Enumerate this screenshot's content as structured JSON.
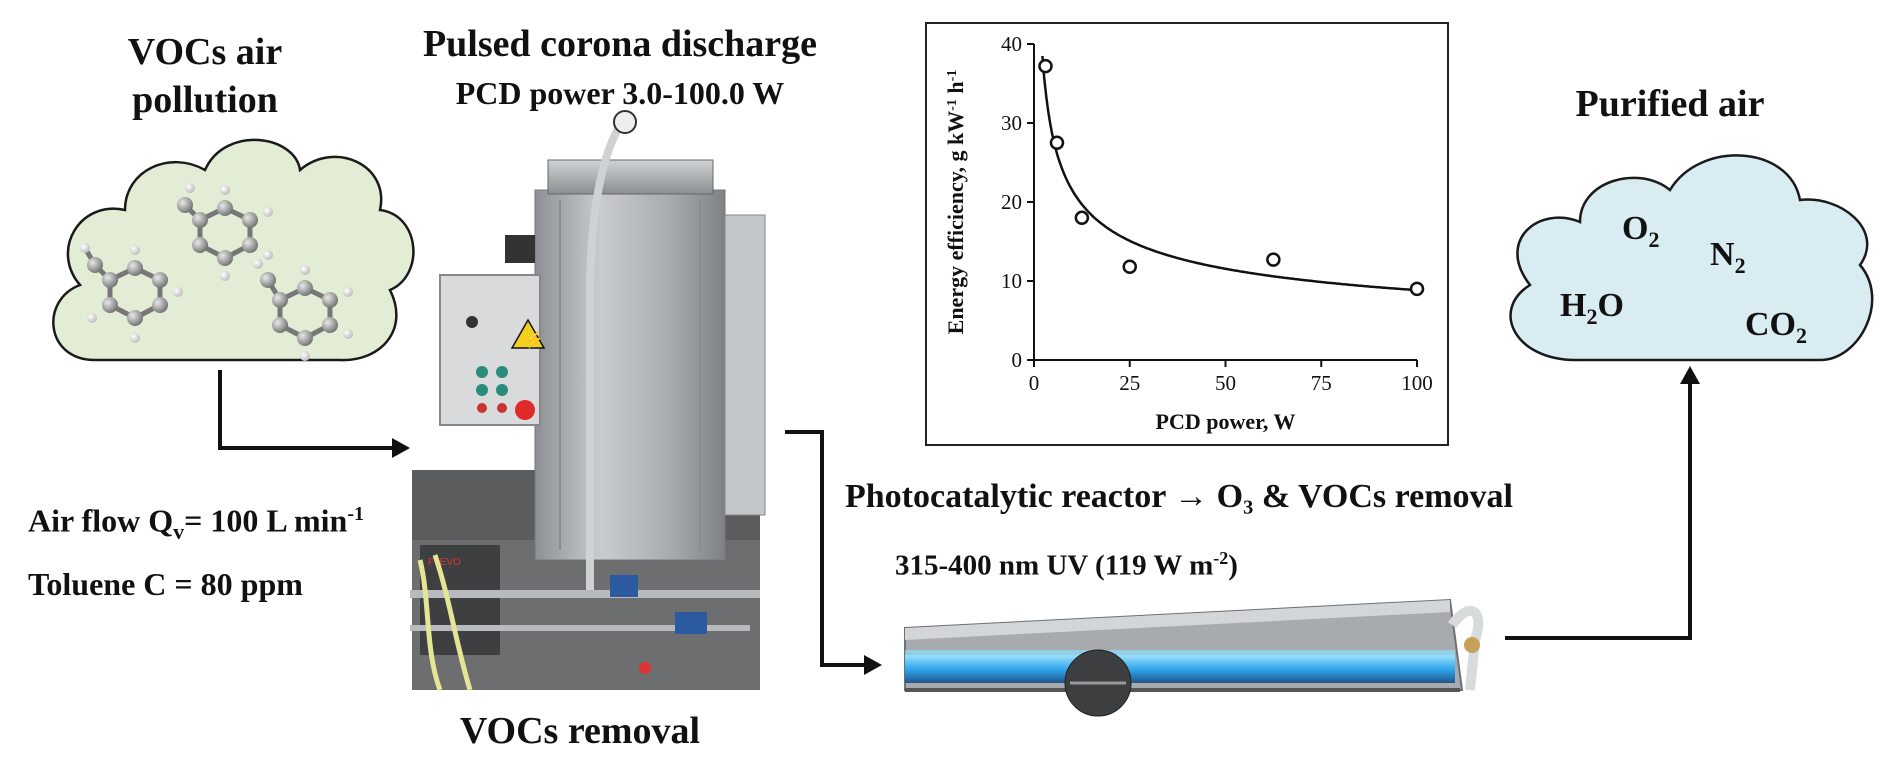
{
  "headings": {
    "vocs_line1": "VOCs air",
    "vocs_line2": "pollution",
    "pcd_title": "Pulsed corona discharge",
    "pcd_power": "PCD power 3.0-100.0 W",
    "purified": "Purified air",
    "vocs_removal": "VOCs removal",
    "photo_title": "Photocatalytic reactor → O₃ & VOCs removal",
    "uv_base": "315-400 nm UV (119 W m",
    "uv_sup": "-2",
    "uv_end": ")"
  },
  "params": {
    "air_flow_label": "Air flow  Q",
    "air_flow_sub": "v",
    "air_flow_value": "= 100 L min",
    "air_flow_sup": "-1",
    "toluene": "Toluene  C = 80 ppm"
  },
  "gases": {
    "o2": "O",
    "o2_sub": "2",
    "n2": "N",
    "n2_sub": "2",
    "h2o_a": "H",
    "h2o_sub": "2",
    "h2o_b": "O",
    "co2": "CO",
    "co2_sub": "2"
  },
  "colors": {
    "pollution_cloud": "#e3ecd5",
    "purified_cloud": "#d9ecf2",
    "uv_glow": "#39b6f0",
    "steel": "#b9bcbf",
    "warning": "#f2d01e",
    "stop_button": "#e02a2a"
  },
  "chart_data": {
    "type": "scatter",
    "ylabel": "Energy efficiency, g kW-1 h-1",
    "ylabel_parts": [
      "Energy efficiency, g kW",
      "-1",
      " h",
      "-1"
    ],
    "xlabel": "PCD power, W",
    "xlim": [
      0,
      100
    ],
    "ylim": [
      0,
      40
    ],
    "xticks": [
      0,
      25,
      50,
      75,
      100
    ],
    "yticks": [
      0,
      10,
      20,
      30,
      40
    ],
    "points": [
      {
        "x": 3,
        "y": 37.2
      },
      {
        "x": 6,
        "y": 27.5
      },
      {
        "x": 12.5,
        "y": 18
      },
      {
        "x": 25,
        "y": 11.8
      },
      {
        "x": 62.5,
        "y": 12.7
      },
      {
        "x": 100,
        "y": 9
      }
    ],
    "trend": {
      "type": "power-law fit"
    },
    "grid": false
  }
}
